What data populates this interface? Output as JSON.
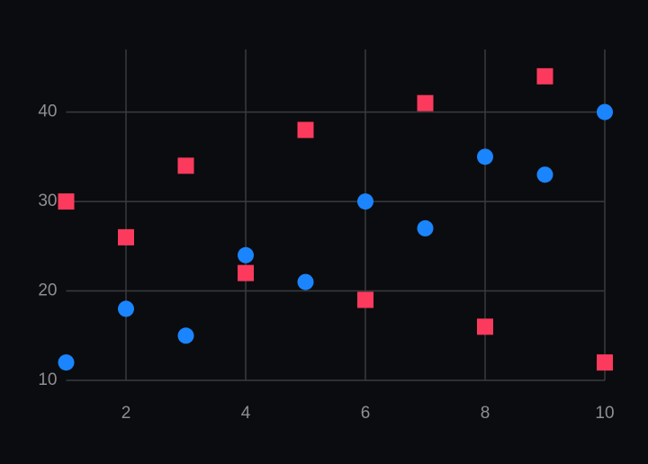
{
  "chart_data": {
    "type": "scatter",
    "x": [
      1,
      2,
      3,
      4,
      5,
      6,
      7,
      8,
      9,
      10
    ],
    "series": [
      {
        "color": "#1a85ff",
        "marker": "circle",
        "values": [
          12,
          18,
          15,
          24,
          21,
          30,
          27,
          35,
          33,
          40
        ]
      },
      {
        "color": "#fb3a5d",
        "marker": "square",
        "values": [
          30,
          26,
          34,
          22,
          38,
          19,
          41,
          16,
          44,
          12
        ]
      }
    ],
    "xlim": [
      1,
      10
    ],
    "xticks": [
      2,
      4,
      6,
      8,
      10
    ],
    "ylim": [
      10,
      47
    ],
    "yticks": [
      10,
      20,
      30,
      40
    ],
    "grid": true
  }
}
